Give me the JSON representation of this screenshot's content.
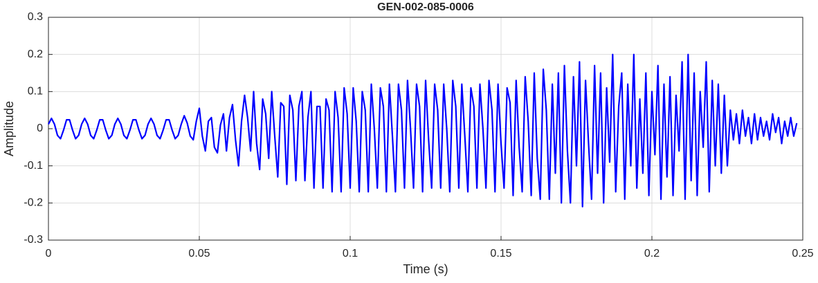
{
  "chart_data": {
    "type": "line",
    "title": "GEN-002-085-0006",
    "xlabel": "Time (s)",
    "ylabel": "Amplitude",
    "xlim": [
      0,
      0.25
    ],
    "xticks": [
      0,
      0.05,
      0.1,
      0.15,
      0.2,
      0.25
    ],
    "ylim": [
      -0.3,
      0.3
    ],
    "yticks": [
      -0.3,
      -0.2,
      -0.1,
      0,
      0.1,
      0.2,
      0.3
    ],
    "grid": true,
    "x": [
      0,
      0.001,
      0.002,
      0.003,
      0.004,
      0.005,
      0.006,
      0.007,
      0.008,
      0.009,
      0.01,
      0.011,
      0.012,
      0.013,
      0.014,
      0.015,
      0.016,
      0.017,
      0.018,
      0.019,
      0.02,
      0.021,
      0.022,
      0.023,
      0.024,
      0.025,
      0.026,
      0.027,
      0.028,
      0.029,
      0.03,
      0.031,
      0.032,
      0.033,
      0.034,
      0.035,
      0.036,
      0.037,
      0.038,
      0.039,
      0.04,
      0.041,
      0.042,
      0.043,
      0.044,
      0.045,
      0.046,
      0.047,
      0.048,
      0.049,
      0.05,
      0.051,
      0.052,
      0.053,
      0.054,
      0.055,
      0.056,
      0.057,
      0.058,
      0.059,
      0.06,
      0.061,
      0.062,
      0.063,
      0.064,
      0.065,
      0.066,
      0.067,
      0.068,
      0.069,
      0.07,
      0.071,
      0.072,
      0.073,
      0.074,
      0.075,
      0.076,
      0.077,
      0.078,
      0.079,
      0.08,
      0.081,
      0.082,
      0.083,
      0.084,
      0.085,
      0.086,
      0.087,
      0.088,
      0.089,
      0.09,
      0.091,
      0.092,
      0.093,
      0.094,
      0.095,
      0.096,
      0.097,
      0.098,
      0.099,
      0.1,
      0.101,
      0.102,
      0.103,
      0.104,
      0.105,
      0.106,
      0.107,
      0.108,
      0.109,
      0.11,
      0.111,
      0.112,
      0.113,
      0.114,
      0.115,
      0.116,
      0.117,
      0.118,
      0.119,
      0.12,
      0.121,
      0.122,
      0.123,
      0.124,
      0.125,
      0.126,
      0.127,
      0.128,
      0.129,
      0.13,
      0.131,
      0.132,
      0.133,
      0.134,
      0.135,
      0.136,
      0.137,
      0.138,
      0.139,
      0.14,
      0.141,
      0.142,
      0.143,
      0.144,
      0.145,
      0.146,
      0.147,
      0.148,
      0.149,
      0.15,
      0.151,
      0.152,
      0.153,
      0.154,
      0.155,
      0.156,
      0.157,
      0.158,
      0.159,
      0.16,
      0.161,
      0.162,
      0.163,
      0.164,
      0.165,
      0.166,
      0.167,
      0.168,
      0.169,
      0.17,
      0.171,
      0.172,
      0.173,
      0.174,
      0.175,
      0.176,
      0.177,
      0.178,
      0.179,
      0.18,
      0.181,
      0.182,
      0.183,
      0.184,
      0.185,
      0.186,
      0.187,
      0.188,
      0.189,
      0.19,
      0.191,
      0.192,
      0.193,
      0.194,
      0.195,
      0.196,
      0.197,
      0.198,
      0.199,
      0.2,
      0.201,
      0.202,
      0.203,
      0.204,
      0.205,
      0.206,
      0.207,
      0.208,
      0.209,
      0.21,
      0.211,
      0.212,
      0.213,
      0.214,
      0.215,
      0.216,
      0.217,
      0.218,
      0.219,
      0.22,
      0.221,
      0.222,
      0.223,
      0.224,
      0.225,
      0.226,
      0.227,
      0.228,
      0.229,
      0.23,
      0.231,
      0.232,
      0.233,
      0.234,
      0.235,
      0.236,
      0.237,
      0.238,
      0.239,
      0.24,
      0.241,
      0.242,
      0.243,
      0.244,
      0.245,
      0.246,
      0.247,
      0.248
    ],
    "series": [
      {
        "color": "#0000ff",
        "values": [
          0.012,
          0.028,
          0.012,
          -0.018,
          -0.027,
          -0.004,
          0.024,
          0.024,
          -0.004,
          -0.027,
          -0.018,
          0.012,
          0.028,
          0.012,
          -0.018,
          -0.027,
          -0.004,
          0.024,
          0.024,
          -0.004,
          -0.027,
          -0.018,
          0.012,
          0.028,
          0.012,
          -0.018,
          -0.027,
          -0.004,
          0.024,
          0.024,
          -0.004,
          -0.027,
          -0.018,
          0.012,
          0.028,
          0.012,
          -0.018,
          -0.027,
          -0.004,
          0.024,
          0.024,
          -0.004,
          -0.027,
          -0.018,
          0.012,
          0.035,
          0.015,
          -0.02,
          -0.03,
          0.02,
          0.055,
          -0.02,
          -0.06,
          0.02,
          0.03,
          -0.05,
          -0.065,
          0.01,
          0.04,
          -0.06,
          0.03,
          0.065,
          -0.03,
          -0.1,
          0.02,
          0.09,
          0.03,
          -0.06,
          0.1,
          -0.04,
          -0.11,
          0.08,
          0.04,
          -0.08,
          0.1,
          -0.02,
          -0.13,
          0.07,
          0.06,
          -0.15,
          0.09,
          0.05,
          -0.14,
          0.06,
          0.1,
          -0.14,
          0.03,
          0.1,
          -0.16,
          0.06,
          0.06,
          -0.16,
          0.08,
          0.05,
          -0.17,
          0.1,
          0.03,
          -0.17,
          0.11,
          0.04,
          -0.16,
          0.11,
          0.02,
          -0.17,
          0.1,
          0.05,
          -0.17,
          0.12,
          0,
          -0.16,
          0.11,
          0.06,
          -0.17,
          0.12,
          -0.02,
          -0.17,
          0.12,
          0.05,
          -0.16,
          0.13,
          0,
          -0.16,
          0.12,
          0.06,
          -0.17,
          0.13,
          -0.03,
          -0.16,
          0.12,
          0.05,
          -0.16,
          0.12,
          0,
          -0.17,
          0.13,
          0.06,
          -0.16,
          0.12,
          -0.02,
          -0.17,
          0.11,
          0.06,
          -0.16,
          0.12,
          0,
          -0.16,
          0.13,
          0.05,
          -0.17,
          0.12,
          -0.04,
          -0.16,
          0.11,
          0.07,
          -0.18,
          0.13,
          -0.05,
          -0.17,
          0.14,
          0.02,
          -0.18,
          0.15,
          -0.08,
          -0.19,
          0.16,
          0.05,
          -0.19,
          0.12,
          -0.12,
          0.15,
          -0.2,
          0.17,
          -0.06,
          -0.2,
          0.14,
          -0.1,
          0.18,
          -0.21,
          0.13,
          -0.04,
          -0.19,
          0.17,
          -0.12,
          0.15,
          -0.2,
          0.11,
          -0.09,
          0.2,
          -0.17,
          0.06,
          0.15,
          -0.19,
          0.12,
          -0.1,
          0.2,
          -0.16,
          0.08,
          -0.12,
          0.15,
          -0.18,
          0.1,
          -0.07,
          0.17,
          -0.19,
          0.12,
          -0.13,
          0.14,
          -0.18,
          0.09,
          -0.06,
          0.18,
          -0.19,
          0.2,
          -0.14,
          0.15,
          -0.18,
          0.1,
          -0.05,
          0.18,
          -0.17,
          0.13,
          -0.1,
          0.12,
          -0.12,
          0.09,
          -0.1,
          0.05,
          -0.03,
          0.04,
          -0.04,
          0.05,
          -0.02,
          0.03,
          -0.04,
          0.04,
          -0.03,
          0.03,
          -0.02,
          0.02,
          -0.03,
          0.04,
          -0.01,
          0.03,
          -0.04,
          0.02,
          -0.02,
          0.03,
          -0.02,
          0.015
        ]
      }
    ]
  }
}
